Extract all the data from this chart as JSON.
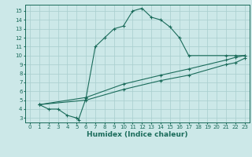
{
  "line1_x": [
    1,
    2,
    3,
    4,
    5,
    5.2,
    6,
    7,
    8,
    9,
    10,
    11,
    12,
    13,
    14,
    15,
    16,
    17,
    21,
    22,
    23
  ],
  "line1_y": [
    4.5,
    4.0,
    4.0,
    3.3,
    3.0,
    2.8,
    5.2,
    11.0,
    12.0,
    13.0,
    13.3,
    15.0,
    15.3,
    14.3,
    14.0,
    13.2,
    12.0,
    10.0,
    10.0,
    10.0,
    10.0
  ],
  "line2_x": [
    1,
    6,
    10,
    14,
    17,
    21,
    22,
    23
  ],
  "line2_y": [
    4.5,
    5.3,
    6.8,
    7.8,
    8.5,
    9.5,
    9.8,
    10.0
  ],
  "line3_x": [
    1,
    6,
    10,
    14,
    17,
    21,
    22,
    23
  ],
  "line3_y": [
    4.5,
    5.0,
    6.2,
    7.2,
    7.8,
    9.0,
    9.2,
    9.7
  ],
  "color": "#1a6b5a",
  "bg_color": "#cce8e8",
  "grid_color": "#a8cece",
  "xlabel": "Humidex (Indice chaleur)",
  "xlim": [
    -0.5,
    23.5
  ],
  "ylim": [
    2.5,
    15.7
  ],
  "xticks": [
    0,
    1,
    2,
    3,
    4,
    5,
    6,
    7,
    8,
    9,
    10,
    11,
    12,
    13,
    14,
    15,
    16,
    17,
    18,
    19,
    20,
    21,
    22,
    23
  ],
  "yticks": [
    3,
    4,
    5,
    6,
    7,
    8,
    9,
    10,
    11,
    12,
    13,
    14,
    15
  ],
  "tick_fontsize": 5.0,
  "xlabel_fontsize": 6.5,
  "marker": "+",
  "linewidth": 0.8,
  "markersize": 3.5,
  "markeredgewidth": 0.8
}
